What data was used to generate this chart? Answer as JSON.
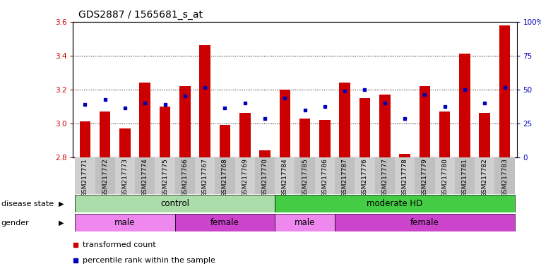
{
  "title": "GDS2887 / 1565681_s_at",
  "samples": [
    "GSM217771",
    "GSM217772",
    "GSM217773",
    "GSM217774",
    "GSM217775",
    "GSM217766",
    "GSM217767",
    "GSM217768",
    "GSM217769",
    "GSM217770",
    "GSM217784",
    "GSM217785",
    "GSM217786",
    "GSM217787",
    "GSM217776",
    "GSM217777",
    "GSM217778",
    "GSM217779",
    "GSM217780",
    "GSM217781",
    "GSM217782",
    "GSM217783"
  ],
  "bar_values": [
    3.01,
    3.07,
    2.97,
    3.24,
    3.1,
    3.22,
    3.46,
    2.99,
    3.06,
    2.84,
    3.2,
    3.03,
    3.02,
    3.24,
    3.15,
    3.17,
    2.82,
    3.22,
    3.07,
    3.41,
    3.06,
    3.58
  ],
  "blue_values": [
    3.11,
    3.14,
    3.09,
    3.12,
    3.11,
    3.16,
    3.21,
    3.09,
    3.12,
    3.03,
    3.15,
    3.08,
    3.1,
    3.19,
    3.2,
    3.12,
    3.03,
    3.17,
    3.1,
    3.2,
    3.12,
    3.21
  ],
  "ylim": [
    2.8,
    3.6
  ],
  "yticks": [
    2.8,
    3.0,
    3.2,
    3.4,
    3.6
  ],
  "right_yticks": [
    0,
    25,
    50,
    75,
    100
  ],
  "bar_color": "#cc0000",
  "blue_color": "#0000bb",
  "bar_bottom": 2.8,
  "disease_state_groups": [
    {
      "label": "control",
      "start": 0,
      "end": 10,
      "color": "#aaddaa"
    },
    {
      "label": "moderate HD",
      "start": 10,
      "end": 22,
      "color": "#44cc44"
    }
  ],
  "gender_groups": [
    {
      "label": "male",
      "start": 0,
      "end": 5,
      "color": "#ee88ee"
    },
    {
      "label": "female",
      "start": 5,
      "end": 10,
      "color": "#cc44cc"
    },
    {
      "label": "male",
      "start": 10,
      "end": 13,
      "color": "#ee88ee"
    },
    {
      "label": "female",
      "start": 13,
      "end": 22,
      "color": "#cc44cc"
    }
  ],
  "disease_label": "disease state",
  "gender_label": "gender",
  "legend_red": "transformed count",
  "legend_blue": "percentile rank within the sample",
  "title_fontsize": 10,
  "tick_fontsize": 6.5,
  "annot_fontsize": 8.5,
  "label_fontsize": 8
}
